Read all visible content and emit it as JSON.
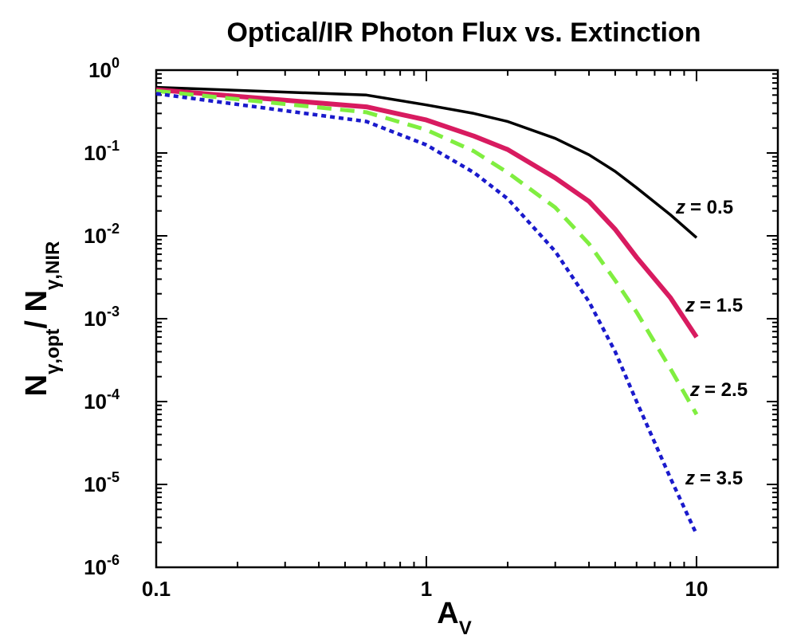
{
  "chart_data": {
    "type": "line",
    "title": "Optical/IR Photon Flux vs. Extinction",
    "xlabel": {
      "main": "A",
      "sub": "V"
    },
    "ylabel": {
      "part1": "N",
      "sub1": "γ,opt",
      "part2": "/ N",
      "sub2": "γ,NIR"
    },
    "xscale": "log",
    "yscale": "log",
    "xlim": [
      0.1,
      20
    ],
    "ylim": [
      1e-06,
      1
    ],
    "grid": false,
    "x_ticks": [
      {
        "value": 0.1,
        "label": "0.1"
      },
      {
        "value": 1,
        "label": "1"
      },
      {
        "value": 10,
        "label": "10"
      }
    ],
    "y_ticks": [
      {
        "value": 1,
        "base": "10",
        "exp": "0"
      },
      {
        "value": 0.1,
        "base": "10",
        "exp": "-1"
      },
      {
        "value": 0.01,
        "base": "10",
        "exp": "-2"
      },
      {
        "value": 0.001,
        "base": "10",
        "exp": "-3"
      },
      {
        "value": 0.0001,
        "base": "10",
        "exp": "-4"
      },
      {
        "value": 1e-05,
        "base": "10",
        "exp": "-5"
      },
      {
        "value": 1e-06,
        "base": "10",
        "exp": "-6"
      }
    ],
    "series": [
      {
        "name": "z = 0.5",
        "z_symbol": "z",
        "z_value": "= 0.5",
        "color": "#000000",
        "style": "solid",
        "x": [
          0.1,
          0.6,
          1,
          1.5,
          2,
          3,
          4,
          5,
          6,
          8,
          10
        ],
        "y": [
          0.62,
          0.5,
          0.38,
          0.3,
          0.24,
          0.15,
          0.095,
          0.06,
          0.038,
          0.018,
          0.0095
        ]
      },
      {
        "name": "z = 1.5",
        "z_symbol": "z",
        "z_value": "= 1.5",
        "color": "#d81b60",
        "style": "solid-thick",
        "x": [
          0.1,
          0.6,
          1,
          1.5,
          2,
          3,
          4,
          5,
          6,
          8,
          10
        ],
        "y": [
          0.58,
          0.36,
          0.25,
          0.16,
          0.11,
          0.05,
          0.026,
          0.012,
          0.0055,
          0.0018,
          0.0006
        ]
      },
      {
        "name": "z = 2.5",
        "z_symbol": "z",
        "z_value": "= 2.5",
        "color": "#80ee40",
        "style": "dashed",
        "x": [
          0.1,
          0.6,
          1,
          1.5,
          2,
          3,
          4,
          5,
          6,
          8,
          10
        ],
        "y": [
          0.56,
          0.31,
          0.19,
          0.105,
          0.058,
          0.022,
          0.008,
          0.0029,
          0.0012,
          0.00025,
          7e-05
        ]
      },
      {
        "name": "z = 3.5",
        "z_symbol": "z",
        "z_value": "= 3.5",
        "color": "#1a1acc",
        "style": "dotted",
        "x": [
          0.1,
          0.6,
          1,
          1.5,
          2,
          3,
          4,
          5,
          6,
          8,
          10
        ],
        "y": [
          0.52,
          0.24,
          0.125,
          0.058,
          0.028,
          0.0065,
          0.0016,
          0.0004,
          0.0001,
          1.2e-05,
          2.5e-06
        ]
      }
    ]
  }
}
